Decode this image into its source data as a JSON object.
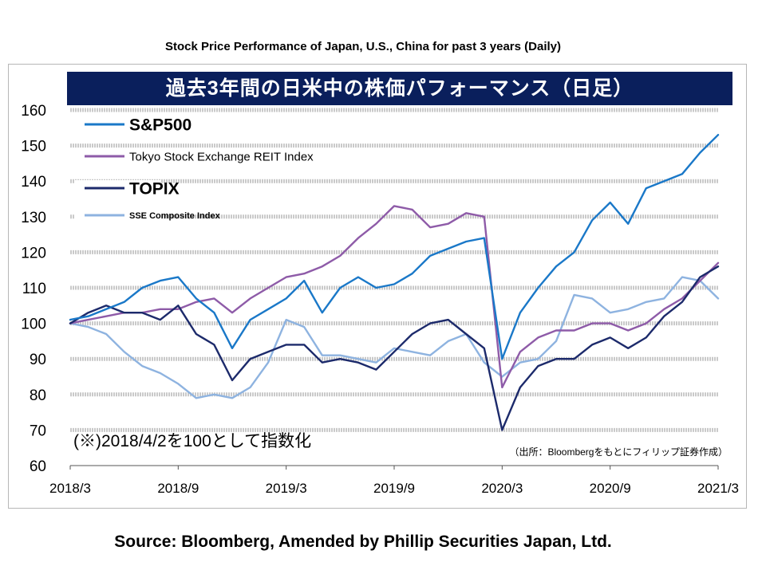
{
  "page": {
    "top_title": "Stock Price Performance of Japan, U.S., China for past 3 years (Daily)",
    "source": "Source: Bloomberg, Amended by Phillip Securities Japan, Ltd."
  },
  "chart_data": {
    "type": "line",
    "title": "過去3年間の日米中の株価パフォーマンス（日足）",
    "note": "(※)2018/4/2を100として指数化",
    "credit": "（出所：Bloombergをもとにフィリップ証券作成）",
    "ylim": [
      60,
      160
    ],
    "yticks": [
      60,
      70,
      80,
      90,
      100,
      110,
      120,
      130,
      140,
      150,
      160
    ],
    "xlim": [
      "2018-03",
      "2021-03"
    ],
    "xticks": [
      "2018/3",
      "2018/9",
      "2019/3",
      "2019/9",
      "2020/3",
      "2020/9",
      "2021/3"
    ],
    "grid": "horizontal dashed",
    "legend_position": "top-left",
    "banner_color": "#0a1f5c",
    "series": [
      {
        "name": "S&P500",
        "color": "#1a78c8",
        "x": [
          "2018-03",
          "2018-04",
          "2018-05",
          "2018-06",
          "2018-07",
          "2018-08",
          "2018-09",
          "2018-10",
          "2018-11",
          "2018-12",
          "2019-01",
          "2019-02",
          "2019-03",
          "2019-04",
          "2019-05",
          "2019-06",
          "2019-07",
          "2019-08",
          "2019-09",
          "2019-10",
          "2019-11",
          "2019-12",
          "2020-01",
          "2020-02",
          "2020-03",
          "2020-04",
          "2020-05",
          "2020-06",
          "2020-07",
          "2020-08",
          "2020-09",
          "2020-10",
          "2020-11",
          "2020-12",
          "2021-01",
          "2021-02",
          "2021-03"
        ],
        "values": [
          101,
          102,
          104,
          106,
          110,
          112,
          113,
          107,
          103,
          93,
          101,
          104,
          107,
          112,
          103,
          110,
          113,
          110,
          111,
          114,
          119,
          121,
          123,
          124,
          90,
          103,
          110,
          116,
          120,
          129,
          134,
          128,
          138,
          140,
          142,
          148,
          153
        ]
      },
      {
        "name": "Tokyo Stock Exchange REIT Index",
        "color": "#8e5ba8",
        "x": [
          "2018-03",
          "2018-04",
          "2018-05",
          "2018-06",
          "2018-07",
          "2018-08",
          "2018-09",
          "2018-10",
          "2018-11",
          "2018-12",
          "2019-01",
          "2019-02",
          "2019-03",
          "2019-04",
          "2019-05",
          "2019-06",
          "2019-07",
          "2019-08",
          "2019-09",
          "2019-10",
          "2019-11",
          "2019-12",
          "2020-01",
          "2020-02",
          "2020-03",
          "2020-04",
          "2020-05",
          "2020-06",
          "2020-07",
          "2020-08",
          "2020-09",
          "2020-10",
          "2020-11",
          "2020-12",
          "2021-01",
          "2021-02",
          "2021-03"
        ],
        "values": [
          100,
          101,
          102,
          103,
          103,
          104,
          104,
          106,
          107,
          103,
          107,
          110,
          113,
          114,
          116,
          119,
          124,
          128,
          133,
          132,
          127,
          128,
          131,
          130,
          82,
          92,
          96,
          98,
          98,
          100,
          100,
          98,
          100,
          104,
          107,
          112,
          117
        ]
      },
      {
        "name": "TOPIX",
        "color": "#1c2a6b",
        "x": [
          "2018-03",
          "2018-04",
          "2018-05",
          "2018-06",
          "2018-07",
          "2018-08",
          "2018-09",
          "2018-10",
          "2018-11",
          "2018-12",
          "2019-01",
          "2019-02",
          "2019-03",
          "2019-04",
          "2019-05",
          "2019-06",
          "2019-07",
          "2019-08",
          "2019-09",
          "2019-10",
          "2019-11",
          "2019-12",
          "2020-01",
          "2020-02",
          "2020-03",
          "2020-04",
          "2020-05",
          "2020-06",
          "2020-07",
          "2020-08",
          "2020-09",
          "2020-10",
          "2020-11",
          "2020-12",
          "2021-01",
          "2021-02",
          "2021-03"
        ],
        "values": [
          100,
          103,
          105,
          103,
          103,
          101,
          105,
          97,
          94,
          84,
          90,
          92,
          94,
          94,
          89,
          90,
          89,
          87,
          92,
          97,
          100,
          101,
          97,
          93,
          70,
          82,
          88,
          90,
          90,
          94,
          96,
          93,
          96,
          102,
          106,
          113,
          116
        ]
      },
      {
        "name": "SSE Composite Index",
        "color": "#8eb3e0",
        "x": [
          "2018-03",
          "2018-04",
          "2018-05",
          "2018-06",
          "2018-07",
          "2018-08",
          "2018-09",
          "2018-10",
          "2018-11",
          "2018-12",
          "2019-01",
          "2019-02",
          "2019-03",
          "2019-04",
          "2019-05",
          "2019-06",
          "2019-07",
          "2019-08",
          "2019-09",
          "2019-10",
          "2019-11",
          "2019-12",
          "2020-01",
          "2020-02",
          "2020-03",
          "2020-04",
          "2020-05",
          "2020-06",
          "2020-07",
          "2020-08",
          "2020-09",
          "2020-10",
          "2020-11",
          "2020-12",
          "2021-01",
          "2021-02",
          "2021-03"
        ],
        "values": [
          100,
          99,
          97,
          92,
          88,
          86,
          83,
          79,
          80,
          79,
          82,
          89,
          101,
          99,
          91,
          91,
          90,
          89,
          93,
          92,
          91,
          95,
          97,
          89,
          85,
          89,
          90,
          95,
          108,
          107,
          103,
          104,
          106,
          107,
          113,
          112,
          107
        ]
      }
    ]
  }
}
